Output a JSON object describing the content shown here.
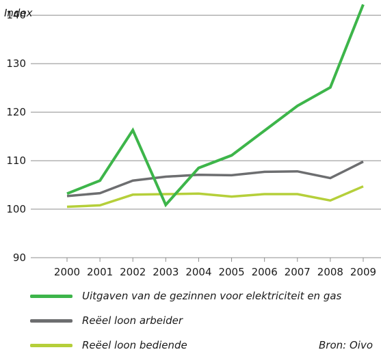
{
  "source": "Bron: Oivo",
  "colors": {
    "electricity_gas": "#3db54a",
    "worker_wage": "#6d6e70",
    "employee_wage": "#b5cf3a",
    "grid": "#8c8c8c"
  },
  "chart_data": {
    "type": "line",
    "ylabel": "Index",
    "ylim": [
      90,
      142
    ],
    "yticks": [
      90,
      100,
      110,
      120,
      130,
      140
    ],
    "categories": [
      "2000",
      "2001",
      "2002",
      "2003",
      "2004",
      "2005",
      "2006",
      "2007",
      "2008",
      "2009"
    ],
    "grid": true,
    "legend_position": "bottom",
    "series": [
      {
        "name": "Uitgaven van de gezinnen voor elektriciteit en gas",
        "color": "#3db54a",
        "values": [
          103.2,
          105.9,
          116.3,
          100.9,
          108.5,
          111.1,
          116.2,
          121.3,
          125.1,
          142.2
        ]
      },
      {
        "name": "Reëel loon arbeider",
        "color": "#6d6e70",
        "values": [
          102.7,
          103.3,
          105.9,
          106.7,
          107.1,
          107.0,
          107.7,
          107.8,
          106.4,
          109.8
        ]
      },
      {
        "name": "Reëel loon bediende",
        "color": "#b5cf3a",
        "values": [
          100.5,
          100.8,
          103.0,
          103.1,
          103.2,
          102.6,
          103.1,
          103.1,
          101.8,
          104.7
        ]
      }
    ]
  }
}
